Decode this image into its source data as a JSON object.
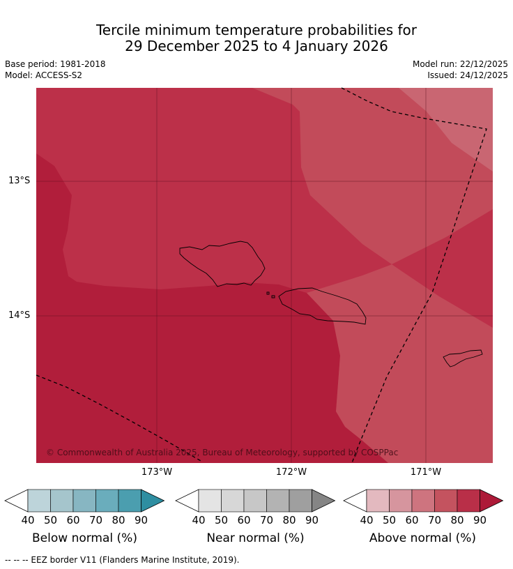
{
  "title": {
    "line1": "Tercile minimum temperature probabilities for",
    "line2": "29 December 2025 to 4 January 2026"
  },
  "meta": {
    "base_period": "Base period: 1981-2018",
    "model": "Model: ACCESS-S2",
    "model_run": "Model run: 22/12/2025",
    "issued": "Issued: 24/12/2025"
  },
  "map": {
    "lon_labels": [
      "173°W",
      "172°W",
      "171°W"
    ],
    "lat_labels": [
      "13°S",
      "14°S"
    ],
    "copyright": "© Commonwealth of Australia 2025, Bureau of Meteorology, supported by COSPPac",
    "colors": {
      "p90": "#b11e3b",
      "p80": "#bc3049",
      "p70": "#c24b5a",
      "p60": "#c96672",
      "land_outline": "#000000",
      "eez": "#000000"
    }
  },
  "legend": {
    "ticks": [
      "40",
      "50",
      "60",
      "70",
      "80",
      "90"
    ],
    "below": {
      "title": "Below normal (%)",
      "colors": [
        "#bdd4da",
        "#a5c5cc",
        "#87b6c2",
        "#6aadbc",
        "#4b9eaf",
        "#2e8ea1"
      ]
    },
    "near": {
      "title": "Near normal (%)",
      "colors": [
        "#e4e4e4",
        "#d7d7d7",
        "#c7c7c7",
        "#b3b3b3",
        "#9f9f9f",
        "#858585"
      ]
    },
    "above": {
      "title": "Above normal (%)",
      "colors": [
        "#e3b9bf",
        "#d6959e",
        "#ce747f",
        "#c4535f",
        "#b92f48",
        "#ad1a38"
      ]
    }
  },
  "footnote": "-- -- -- EEZ border V11 (Flanders Marine Institute, 2019)."
}
